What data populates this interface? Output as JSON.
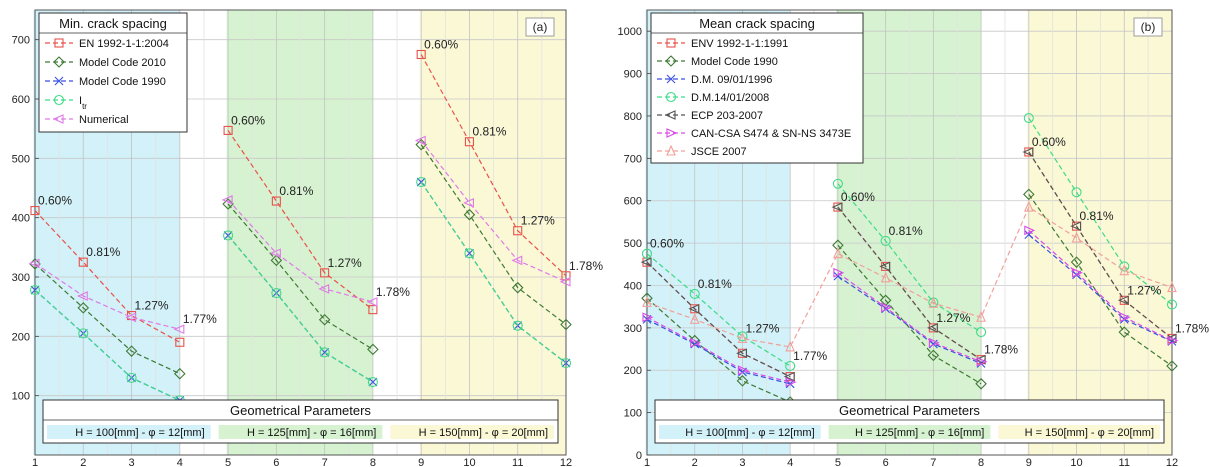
{
  "colors": {
    "band_blue": "#d2f1f8",
    "band_green": "#d6f2d0",
    "band_yellow": "#fbf8d6"
  },
  "chart_data": [
    {
      "type": "line",
      "panel_tag": "(a)",
      "legend_title": "Min. crack spacing",
      "x": [
        1,
        2,
        3,
        4,
        5,
        6,
        7,
        8,
        9,
        10,
        11,
        12
      ],
      "xlim": [
        1,
        12
      ],
      "ylim": [
        0,
        750
      ],
      "yticks": [
        100,
        200,
        300,
        400,
        500,
        600,
        700
      ],
      "grid": true,
      "series": [
        {
          "name": "EN 1992-1-1:2004",
          "color": "#e8524a",
          "marker": "square",
          "segments": [
            [
              1,
              4
            ],
            [
              5,
              8
            ],
            [
              9,
              12
            ]
          ],
          "values": [
            412,
            325,
            235,
            190,
            547,
            428,
            307,
            245,
            675,
            528,
            378,
            302
          ]
        },
        {
          "name": "Model Code 2010",
          "color": "#3f7a35",
          "marker": "diamond",
          "segments": [
            [
              1,
              4
            ],
            [
              5,
              8
            ],
            [
              9,
              12
            ]
          ],
          "values": [
            322,
            248,
            175,
            137,
            423,
            328,
            228,
            178,
            523,
            405,
            282,
            220
          ]
        },
        {
          "name": "Model Code 1990",
          "color": "#3a50e0",
          "marker": "x",
          "segments": [
            [
              1,
              4
            ],
            [
              5,
              8
            ],
            [
              9,
              12
            ]
          ],
          "values": [
            278,
            205,
            130,
            92,
            370,
            273,
            173,
            123,
            460,
            340,
            218,
            155
          ]
        },
        {
          "name": "I",
          "name_sub": "tr",
          "color": "#3fdb86",
          "marker": "circle",
          "segments": [
            [
              1,
              4
            ],
            [
              5,
              8
            ],
            [
              9,
              12
            ]
          ],
          "values": [
            278,
            205,
            130,
            92,
            370,
            273,
            173,
            123,
            460,
            340,
            218,
            155
          ]
        },
        {
          "name": "Numerical",
          "color": "#e07ae8",
          "marker": "triangle-left",
          "segments": [
            [
              1,
              4
            ],
            [
              5,
              8
            ],
            [
              9,
              12
            ]
          ],
          "values": [
            323,
            268,
            232,
            212,
            430,
            340,
            280,
            258,
            530,
            425,
            328,
            292
          ]
        }
      ],
      "annotations": [
        {
          "x": 1,
          "y": 412,
          "text": "0.60%"
        },
        {
          "x": 2,
          "y": 325,
          "text": "0.81%"
        },
        {
          "x": 3,
          "y": 235,
          "text": "1.27%"
        },
        {
          "x": 4,
          "y": 212,
          "text": "1.77%"
        },
        {
          "x": 5,
          "y": 547,
          "text": "0.60%"
        },
        {
          "x": 6,
          "y": 428,
          "text": "0.81%"
        },
        {
          "x": 7,
          "y": 307,
          "text": "1.27%"
        },
        {
          "x": 8,
          "y": 258,
          "text": "1.78%"
        },
        {
          "x": 9,
          "y": 675,
          "text": "0.60%"
        },
        {
          "x": 10,
          "y": 528,
          "text": "0.81%"
        },
        {
          "x": 11,
          "y": 378,
          "text": "1.27%"
        },
        {
          "x": 12,
          "y": 302,
          "text": "1.78%"
        }
      ],
      "geometry_box": {
        "title": "Geometrical Parameters",
        "items": [
          {
            "label": "H = 100[mm] - φ = 12[mm]",
            "color": "#d2f1f8"
          },
          {
            "label": "H = 125[mm] - φ = 16[mm]",
            "color": "#d6f2d0"
          },
          {
            "label": "H = 150[mm] - φ = 20[mm]",
            "color": "#fbf8d6"
          }
        ]
      }
    },
    {
      "type": "line",
      "panel_tag": "(b)",
      "legend_title": "Mean crack spacing",
      "x": [
        1,
        2,
        3,
        4,
        5,
        6,
        7,
        8,
        9,
        10,
        11,
        12
      ],
      "xlim": [
        1,
        12
      ],
      "ylim": [
        0,
        1050
      ],
      "yticks": [
        0,
        100,
        200,
        300,
        400,
        500,
        600,
        700,
        800,
        900,
        1000
      ],
      "grid": true,
      "series": [
        {
          "name": "ENV 1992-1-1:1991",
          "color": "#e8524a",
          "marker": "square",
          "segments": [
            [
              1,
              4
            ],
            [
              5,
              8
            ],
            [
              9,
              12
            ]
          ],
          "values": [
            455,
            345,
            240,
            185,
            585,
            445,
            300,
            225,
            715,
            540,
            365,
            275
          ]
        },
        {
          "name": "Model Code 1990",
          "color": "#3f7a35",
          "marker": "diamond",
          "segments": [
            [
              1,
              4
            ],
            [
              5,
              8
            ],
            [
              9,
              12
            ]
          ],
          "values": [
            370,
            270,
            175,
            125,
            495,
            365,
            235,
            168,
            615,
            455,
            290,
            210
          ]
        },
        {
          "name": "D.M. 09/01/1996",
          "color": "#3a50e0",
          "marker": "x",
          "segments": [
            [
              1,
              4
            ],
            [
              5,
              8
            ],
            [
              9,
              12
            ]
          ],
          "values": [
            320,
            262,
            196,
            168,
            422,
            345,
            262,
            216,
            520,
            425,
            320,
            268
          ]
        },
        {
          "name": "D.M.14/01/2008",
          "color": "#3fdb86",
          "marker": "circle",
          "segments": [
            [
              1,
              4
            ],
            [
              5,
              8
            ],
            [
              9,
              12
            ]
          ],
          "values": [
            475,
            380,
            280,
            210,
            640,
            505,
            360,
            290,
            795,
            620,
            445,
            355
          ]
        },
        {
          "name": "ECP 203-2007",
          "color": "#555555",
          "marker": "triangle-left",
          "segments": [
            [
              1,
              4
            ],
            [
              5,
              8
            ],
            [
              9,
              12
            ]
          ],
          "values": [
            455,
            345,
            240,
            185,
            585,
            445,
            300,
            225,
            715,
            540,
            365,
            275
          ]
        },
        {
          "name": "CAN-CSA S474 & SN-NS 3473E",
          "color": "#d94ae8",
          "marker": "triangle-right",
          "segments": [
            [
              1,
              4
            ],
            [
              5,
              8
            ],
            [
              9,
              12
            ]
          ],
          "values": [
            325,
            265,
            200,
            172,
            430,
            348,
            265,
            220,
            530,
            430,
            325,
            270
          ]
        },
        {
          "name": "JSCE 2007",
          "color": "#f2a09a",
          "marker": "triangle-up",
          "segments": [
            [
              1,
              12
            ]
          ],
          "values": [
            360,
            320,
            275,
            255,
            475,
            418,
            358,
            325,
            585,
            512,
            435,
            395
          ]
        }
      ],
      "annotations": [
        {
          "x": 1,
          "y": 475,
          "text": "0.60%"
        },
        {
          "x": 2,
          "y": 380,
          "text": "0.81%"
        },
        {
          "x": 3,
          "y": 275,
          "text": "1.27%"
        },
        {
          "x": 4,
          "y": 210,
          "text": "1.77%"
        },
        {
          "x": 5,
          "y": 585,
          "text": "0.60%"
        },
        {
          "x": 6,
          "y": 505,
          "text": "0.81%"
        },
        {
          "x": 7,
          "y": 300,
          "text": "1.27%"
        },
        {
          "x": 8,
          "y": 225,
          "text": "1.78%"
        },
        {
          "x": 9,
          "y": 715,
          "text": "0.60%"
        },
        {
          "x": 10,
          "y": 540,
          "text": "0.81%"
        },
        {
          "x": 11,
          "y": 365,
          "text": "1.27%"
        },
        {
          "x": 12,
          "y": 275,
          "text": "1.78%"
        }
      ],
      "geometry_box": {
        "title": "Geometrical Parameters",
        "items": [
          {
            "label": "H = 100[mm] - φ = 12[mm]",
            "color": "#d2f1f8"
          },
          {
            "label": "H = 125[mm] - φ = 16[mm]",
            "color": "#d6f2d0"
          },
          {
            "label": "H = 150[mm] - φ = 20[mm]",
            "color": "#fbf8d6"
          }
        ]
      }
    }
  ]
}
